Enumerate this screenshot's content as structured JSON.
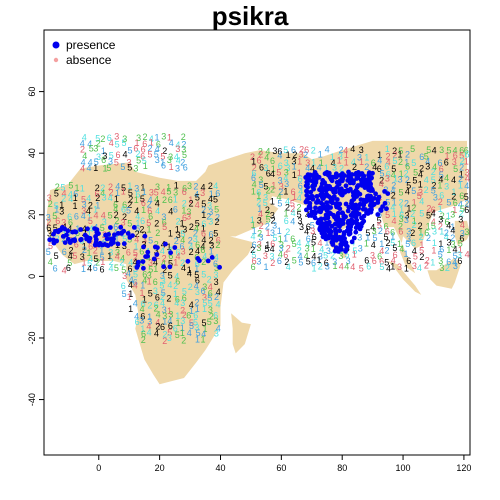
{
  "title": "psikra",
  "legend": {
    "position": "top-left",
    "items": [
      {
        "label": "presence",
        "color": "#0000ee"
      },
      {
        "label": "absence",
        "color": "#f4a0a0"
      }
    ]
  },
  "colors": {
    "land": "#efd8aa",
    "presence": "#0000ee",
    "frame": "#000000",
    "code_palette": [
      "#000000",
      "#e06070",
      "#50c050",
      "#40a0e0",
      "#50e0e0"
    ]
  },
  "chart_data": {
    "type": "scatter",
    "title": "psikra",
    "xlabel": "",
    "ylabel": "",
    "xlim": [
      -18,
      122
    ],
    "ylim": [
      -58,
      80
    ],
    "x_ticks": [
      0,
      20,
      40,
      60,
      80,
      100,
      120
    ],
    "y_ticks": [
      -40,
      -20,
      0,
      20,
      40,
      60
    ],
    "grid": false,
    "series": [
      {
        "name": "presence",
        "regions": [
          {
            "lon_range": [
              68,
              90
            ],
            "lat_range": [
              8,
              34
            ],
            "approx_points": 420
          },
          {
            "lon_range": [
              -17,
              12
            ],
            "lat_range": [
              10,
              16
            ],
            "approx_points": 70
          },
          {
            "lon_range": [
              12,
              40
            ],
            "lat_range": [
              2,
              14
            ],
            "approx_points": 25
          },
          {
            "lon_range": [
              90,
              96
            ],
            "lat_range": [
              20,
              28
            ],
            "approx_points": 15
          }
        ]
      },
      {
        "name": "absence",
        "marker_codes": [
          "1",
          "2",
          "3",
          "4",
          "5",
          "6"
        ],
        "regions": [
          {
            "lon_range": [
              -8,
              30
            ],
            "lat_range": [
              34,
              44
            ]
          },
          {
            "lon_range": [
              -17,
              40
            ],
            "lat_range": [
              -22,
              28
            ]
          },
          {
            "lon_range": [
              50,
              122
            ],
            "lat_range": [
              2,
              40
            ]
          }
        ]
      }
    ]
  }
}
